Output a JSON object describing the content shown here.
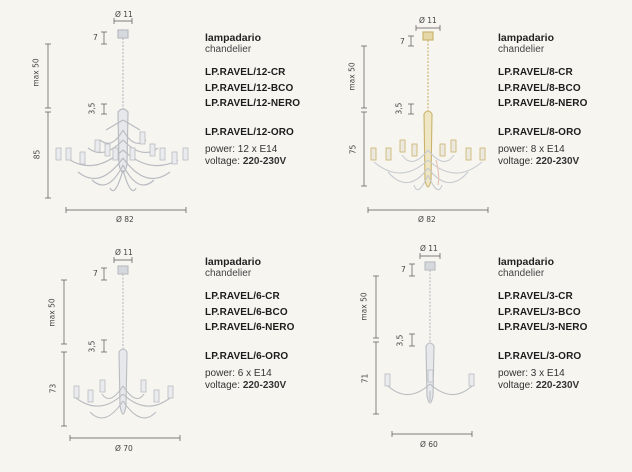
{
  "colors": {
    "background": "#f6f5f0",
    "chrome": "#b9bcc1",
    "glass": "#cfd3d8",
    "gold": "#c9b26a",
    "accent_tint": "#e7c4b6"
  },
  "products": [
    {
      "label_it": "lampadario",
      "label_en": "chandelier",
      "codes": [
        "LP.RAVEL/12-CR",
        "LP.RAVEL/12-BCO",
        "LP.RAVEL/12-NERO"
      ],
      "code_oro": "LP.RAVEL/12-ORO",
      "power_label": "power: 12 x E14",
      "voltage_label": "voltage:",
      "voltage_value": "220-230V",
      "dims": {
        "top": "Ø 11",
        "chain_top": "7",
        "chain": "max 50",
        "gap": "3,5",
        "height": "85",
        "width": "Ø 82"
      },
      "finish": "chrome"
    },
    {
      "label_it": "lampadario",
      "label_en": "chandelier",
      "codes": [
        "LP.RAVEL/8-CR",
        "LP.RAVEL/8-BCO",
        "LP.RAVEL/8-NERO"
      ],
      "code_oro": "LP.RAVEL/8-ORO",
      "power_label": "power: 8 x E14",
      "voltage_label": "voltage:",
      "voltage_value": "220-230V",
      "dims": {
        "top": "Ø 11",
        "chain_top": "7",
        "chain": "max 50",
        "gap": "3,5",
        "height": "75",
        "width": "Ø 82"
      },
      "finish": "gold"
    },
    {
      "label_it": "lampadario",
      "label_en": "chandelier",
      "codes": [
        "LP.RAVEL/6-CR",
        "LP.RAVEL/6-BCO",
        "LP.RAVEL/6-NERO"
      ],
      "code_oro": "LP.RAVEL/6-ORO",
      "power_label": "power: 6 x E14",
      "voltage_label": "voltage:",
      "voltage_value": "220-230V",
      "dims": {
        "top": "Ø 11",
        "chain_top": "7",
        "chain": "max 50",
        "gap": "3,5",
        "height": "73",
        "width": "Ø 70"
      },
      "finish": "chrome"
    },
    {
      "label_it": "lampadario",
      "label_en": "chandelier",
      "codes": [
        "LP.RAVEL/3-CR",
        "LP.RAVEL/3-BCO",
        "LP.RAVEL/3-NERO"
      ],
      "code_oro": "LP.RAVEL/3-ORO",
      "power_label": "power: 3 x E14",
      "voltage_label": "voltage:",
      "voltage_value": "220-230V",
      "dims": {
        "top": "Ø 11",
        "chain_top": "7",
        "chain": "max 50",
        "gap": "3,5",
        "height": "71",
        "width": "Ø 60"
      },
      "finish": "chrome"
    }
  ]
}
